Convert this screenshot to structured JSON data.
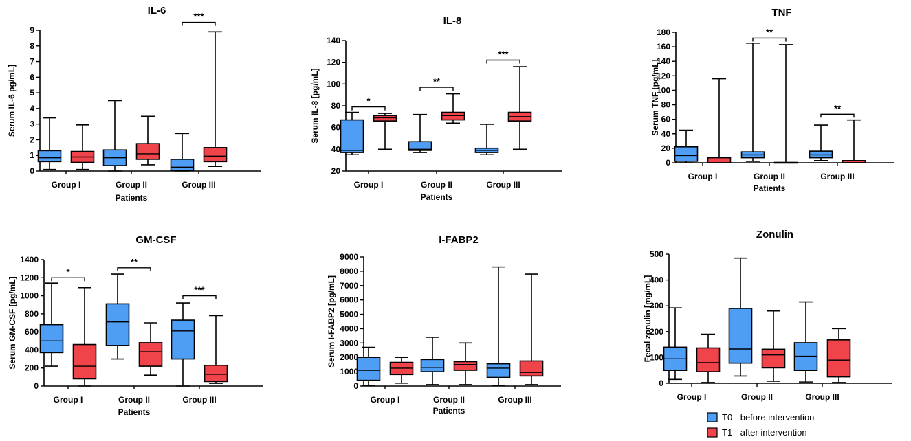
{
  "colors": {
    "t0": "#4f9ef5",
    "t1": "#f0434a",
    "line": "#000000"
  },
  "legend": [
    {
      "label": "T0 - before intervention",
      "color": "#4f9ef5"
    },
    {
      "label": "T1 - after intervention",
      "color": "#f0434a"
    }
  ],
  "chart_data": [
    {
      "type": "box",
      "title": "IL-6",
      "xlabel": "Patients",
      "ylabel": "Serum IL-6 pg/mL]",
      "categories": [
        "Group I",
        "Group II",
        "Group III"
      ],
      "ylim": [
        0,
        9
      ],
      "yticks": [
        0,
        1,
        2,
        3,
        4,
        5,
        6,
        7,
        8,
        9
      ],
      "tick_labels": [
        "0",
        "1",
        "2",
        "3",
        "4",
        "5",
        "6",
        "7",
        "8",
        "9"
      ],
      "series": [
        {
          "name": "T0",
          "boxes": [
            {
              "min": 0.1,
              "q1": 0.6,
              "median": 0.85,
              "q3": 1.3,
              "max": 3.4
            },
            {
              "min": 0.0,
              "q1": 0.35,
              "median": 0.85,
              "q3": 1.35,
              "max": 4.5
            },
            {
              "min": 0.0,
              "q1": 0.05,
              "median": 0.25,
              "q3": 0.75,
              "max": 2.4
            }
          ]
        },
        {
          "name": "T1",
          "boxes": [
            {
              "min": 0.1,
              "q1": 0.55,
              "median": 0.9,
              "q3": 1.25,
              "max": 2.95
            },
            {
              "min": 0.4,
              "q1": 0.75,
              "median": 1.1,
              "q3": 1.75,
              "max": 3.5
            },
            {
              "min": 0.3,
              "q1": 0.6,
              "median": 0.95,
              "q3": 1.5,
              "max": 8.9
            }
          ]
        }
      ],
      "significance": [
        {
          "group": 2,
          "label": "***",
          "y": 9.5
        }
      ]
    },
    {
      "type": "box",
      "title": "IL-8",
      "xlabel": "Patients",
      "ylabel": "Serum IL-8 [pg/mL]",
      "categories": [
        "Group I",
        "Group II",
        "Group III"
      ],
      "ylim": [
        20,
        140
      ],
      "yticks": [
        20,
        40,
        60,
        80,
        100,
        120,
        140
      ],
      "tick_labels": [
        "20",
        "40",
        "60",
        "80",
        "100",
        "120",
        "140"
      ],
      "series": [
        {
          "name": "T0",
          "boxes": [
            {
              "min": 35,
              "q1": 37,
              "median": 39,
              "q3": 67,
              "max": 74
            },
            {
              "min": 37,
              "q1": 39,
              "median": 40,
              "q3": 47,
              "max": 72
            },
            {
              "min": 35,
              "q1": 37,
              "median": 39,
              "q3": 41,
              "max": 63
            }
          ]
        },
        {
          "name": "T1",
          "boxes": [
            {
              "min": 40,
              "q1": 66,
              "median": 69,
              "q3": 71,
              "max": 73
            },
            {
              "min": 64,
              "q1": 67,
              "median": 71,
              "q3": 74,
              "max": 91
            },
            {
              "min": 40,
              "q1": 66,
              "median": 70,
              "q3": 74,
              "max": 116
            }
          ]
        }
      ],
      "significance": [
        {
          "group": 0,
          "label": "*",
          "y": 79
        },
        {
          "group": 1,
          "label": "**",
          "y": 97
        },
        {
          "group": 2,
          "label": "***",
          "y": 122
        }
      ]
    },
    {
      "type": "box",
      "title": "TNF",
      "xlabel": "Patients",
      "ylabel": "Serum TNF [pg/mL]",
      "categories": [
        "Group I",
        "Group II",
        "Group III"
      ],
      "ylim": [
        0,
        180
      ],
      "yticks": [
        0,
        20,
        40,
        60,
        80,
        100,
        120,
        140,
        160,
        180
      ],
      "tick_labels": [
        "0",
        "20",
        "40",
        "60",
        "80",
        "100",
        "120",
        "140",
        "160",
        "180"
      ],
      "series": [
        {
          "name": "T0",
          "boxes": [
            {
              "min": 0,
              "q1": 2,
              "median": 10,
              "q3": 22,
              "max": 45
            },
            {
              "min": 2,
              "q1": 7,
              "median": 11,
              "q3": 15,
              "max": 165
            },
            {
              "min": 3,
              "q1": 7,
              "median": 11,
              "q3": 16,
              "max": 52
            }
          ]
        },
        {
          "name": "T1",
          "boxes": [
            {
              "min": 0,
              "q1": 0,
              "median": 0,
              "q3": 7,
              "max": 116
            },
            {
              "min": 0,
              "q1": 0,
              "median": 0,
              "q3": 0.5,
              "max": 163
            },
            {
              "min": 0,
              "q1": 0,
              "median": 0,
              "q3": 3,
              "max": 59
            }
          ]
        }
      ],
      "significance": [
        {
          "group": 1,
          "label": "**",
          "y": 172
        },
        {
          "group": 2,
          "label": "**",
          "y": 67
        }
      ]
    },
    {
      "type": "box",
      "title": "GM-CSF",
      "xlabel": "Patients",
      "ylabel": "Serum GM-CSF [pg/mL]",
      "categories": [
        "Group I",
        "Group II",
        "Group III"
      ],
      "ylim": [
        0,
        1400
      ],
      "yticks": [
        0,
        200,
        400,
        600,
        800,
        1000,
        1200,
        1400
      ],
      "tick_labels": [
        "0",
        "200",
        "400",
        "600",
        "800",
        "1000",
        "1200",
        "1400"
      ],
      "series": [
        {
          "name": "T0",
          "boxes": [
            {
              "min": 220,
              "q1": 370,
              "median": 500,
              "q3": 680,
              "max": 1140
            },
            {
              "min": 300,
              "q1": 450,
              "median": 710,
              "q3": 910,
              "max": 1240
            },
            {
              "min": 0,
              "q1": 300,
              "median": 610,
              "q3": 730,
              "max": 920
            }
          ]
        },
        {
          "name": "T1",
          "boxes": [
            {
              "min": 0,
              "q1": 80,
              "median": 220,
              "q3": 460,
              "max": 1090
            },
            {
              "min": 120,
              "q1": 220,
              "median": 380,
              "q3": 480,
              "max": 700
            },
            {
              "min": 30,
              "q1": 50,
              "median": 130,
              "q3": 230,
              "max": 780
            }
          ]
        }
      ],
      "significance": [
        {
          "group": 0,
          "label": "*",
          "y": 1200
        },
        {
          "group": 1,
          "label": "**",
          "y": 1310
        },
        {
          "group": 2,
          "label": "***",
          "y": 1000
        }
      ]
    },
    {
      "type": "box",
      "title": "I-FABP2",
      "xlabel": "Patients",
      "ylabel": "Serum I-FABP2 [pg/mL]",
      "categories": [
        "Group I",
        "Group II",
        "Group III"
      ],
      "ylim": [
        0,
        9000
      ],
      "yticks": [
        0,
        1000,
        2000,
        3000,
        4000,
        5000,
        6000,
        7000,
        8000,
        9000
      ],
      "tick_labels": [
        "0",
        "1000",
        "2000",
        "3000",
        "4000",
        "5000",
        "6000",
        "7000",
        "8000",
        "9000"
      ],
      "series": [
        {
          "name": "T0",
          "boxes": [
            {
              "min": 50,
              "q1": 400,
              "median": 1100,
              "q3": 2000,
              "max": 2700
            },
            {
              "min": 100,
              "q1": 1000,
              "median": 1300,
              "q3": 1850,
              "max": 3400
            },
            {
              "min": 50,
              "q1": 600,
              "median": 1250,
              "q3": 1550,
              "max": 8300
            }
          ]
        },
        {
          "name": "T1",
          "boxes": [
            {
              "min": 200,
              "q1": 800,
              "median": 1250,
              "q3": 1650,
              "max": 2000
            },
            {
              "min": 100,
              "q1": 1100,
              "median": 1500,
              "q3": 1700,
              "max": 3000
            },
            {
              "min": 100,
              "q1": 700,
              "median": 950,
              "q3": 1750,
              "max": 7800
            }
          ]
        }
      ],
      "significance": []
    },
    {
      "type": "box",
      "title": "Zonulin",
      "xlabel": "",
      "ylabel": "Fecal zonulin [mg/mL]",
      "categories": [
        "Group I",
        "Group II",
        "Group III"
      ],
      "ylim": [
        0,
        500
      ],
      "yticks": [
        0,
        100,
        200,
        300,
        400,
        500
      ],
      "tick_labels": [
        "0",
        "100",
        "200",
        "300",
        "400",
        "500"
      ],
      "series": [
        {
          "name": "T0",
          "boxes": [
            {
              "min": 15,
              "q1": 50,
              "median": 95,
              "q3": 140,
              "max": 292
            },
            {
              "min": 28,
              "q1": 78,
              "median": 133,
              "q3": 290,
              "max": 485
            },
            {
              "min": 5,
              "q1": 50,
              "median": 105,
              "q3": 157,
              "max": 315
            }
          ]
        },
        {
          "name": "T1",
          "boxes": [
            {
              "min": 3,
              "q1": 45,
              "median": 80,
              "q3": 137,
              "max": 190
            },
            {
              "min": 8,
              "q1": 60,
              "median": 110,
              "q3": 132,
              "max": 280
            },
            {
              "min": 3,
              "q1": 25,
              "median": 90,
              "q3": 168,
              "max": 212
            }
          ]
        }
      ],
      "significance": []
    }
  ]
}
